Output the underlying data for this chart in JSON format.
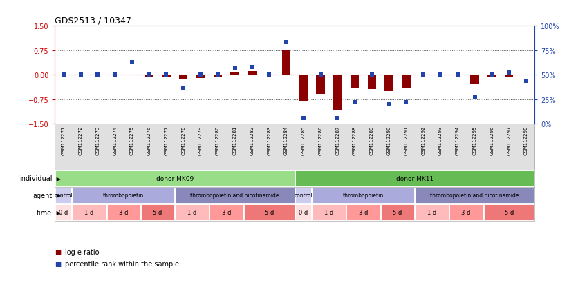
{
  "title": "GDS2513 / 10347",
  "samples": [
    "GSM112271",
    "GSM112272",
    "GSM112273",
    "GSM112274",
    "GSM112275",
    "GSM112276",
    "GSM112277",
    "GSM112278",
    "GSM112279",
    "GSM112280",
    "GSM112281",
    "GSM112282",
    "GSM112283",
    "GSM112284",
    "GSM112285",
    "GSM112286",
    "GSM112287",
    "GSM112288",
    "GSM112289",
    "GSM112290",
    "GSM112291",
    "GSM112292",
    "GSM112293",
    "GSM112294",
    "GSM112295",
    "GSM112296",
    "GSM112297",
    "GSM112298"
  ],
  "log_e_ratio": [
    0.0,
    0.0,
    0.0,
    0.0,
    0.0,
    -0.07,
    -0.05,
    -0.12,
    -0.1,
    -0.07,
    0.07,
    0.12,
    0.0,
    0.75,
    -0.82,
    -0.58,
    -1.1,
    -0.42,
    -0.44,
    -0.5,
    -0.42,
    0.0,
    0.0,
    0.0,
    -0.28,
    -0.05,
    -0.07,
    0.0
  ],
  "percentile_rank": [
    50,
    50,
    50,
    50,
    63,
    50,
    50,
    37,
    50,
    50,
    57,
    58,
    50,
    83,
    6,
    50,
    6,
    22,
    50,
    20,
    22,
    50,
    50,
    50,
    27,
    50,
    52,
    44
  ],
  "ylim_left": [
    -1.5,
    1.5
  ],
  "ylim_right": [
    0,
    100
  ],
  "yticks_left": [
    -1.5,
    -0.75,
    0.0,
    0.75,
    1.5
  ],
  "yticks_right": [
    0,
    25,
    50,
    75,
    100
  ],
  "bar_color": "#8B0000",
  "point_color": "#2244AA",
  "hline_color": "#CC0000",
  "dotted_color": "#555555",
  "bg_color": "#F5F5F5",
  "individual_groups": [
    {
      "label": "donor MK09",
      "start": 0,
      "end": 13,
      "color": "#99DD88"
    },
    {
      "label": "donor MK11",
      "start": 14,
      "end": 27,
      "color": "#66BB55"
    }
  ],
  "agent_groups": [
    {
      "label": "control",
      "start": 0,
      "end": 0,
      "color": "#CCCCEE"
    },
    {
      "label": "thrombopoietin",
      "start": 1,
      "end": 6,
      "color": "#AAAADD"
    },
    {
      "label": "thrombopoietin and nicotinamide",
      "start": 7,
      "end": 13,
      "color": "#8888BB"
    },
    {
      "label": "control",
      "start": 14,
      "end": 14,
      "color": "#CCCCEE"
    },
    {
      "label": "thrombopoietin",
      "start": 15,
      "end": 20,
      "color": "#AAAADD"
    },
    {
      "label": "thrombopoietin and nicotinamide",
      "start": 21,
      "end": 27,
      "color": "#8888BB"
    }
  ],
  "time_groups": [
    {
      "label": "0 d",
      "start": 0,
      "end": 0,
      "color": "#FFE0E0"
    },
    {
      "label": "1 d",
      "start": 1,
      "end": 2,
      "color": "#FFBBBB"
    },
    {
      "label": "3 d",
      "start": 3,
      "end": 4,
      "color": "#FF9999"
    },
    {
      "label": "5 d",
      "start": 5,
      "end": 6,
      "color": "#EE7777"
    },
    {
      "label": "1 d",
      "start": 7,
      "end": 8,
      "color": "#FFBBBB"
    },
    {
      "label": "3 d",
      "start": 9,
      "end": 10,
      "color": "#FF9999"
    },
    {
      "label": "5 d",
      "start": 11,
      "end": 13,
      "color": "#EE7777"
    },
    {
      "label": "0 d",
      "start": 14,
      "end": 14,
      "color": "#FFE0E0"
    },
    {
      "label": "1 d",
      "start": 15,
      "end": 16,
      "color": "#FFBBBB"
    },
    {
      "label": "3 d",
      "start": 17,
      "end": 18,
      "color": "#FF9999"
    },
    {
      "label": "5 d",
      "start": 19,
      "end": 20,
      "color": "#EE7777"
    },
    {
      "label": "1 d",
      "start": 21,
      "end": 22,
      "color": "#FFBBBB"
    },
    {
      "label": "3 d",
      "start": 23,
      "end": 24,
      "color": "#FF9999"
    },
    {
      "label": "5 d",
      "start": 25,
      "end": 27,
      "color": "#EE7777"
    }
  ],
  "row_labels": [
    "individual",
    "agent",
    "time"
  ],
  "legend": [
    {
      "label": "log e ratio",
      "color": "#8B0000"
    },
    {
      "label": "percentile rank within the sample",
      "color": "#2244AA"
    }
  ]
}
